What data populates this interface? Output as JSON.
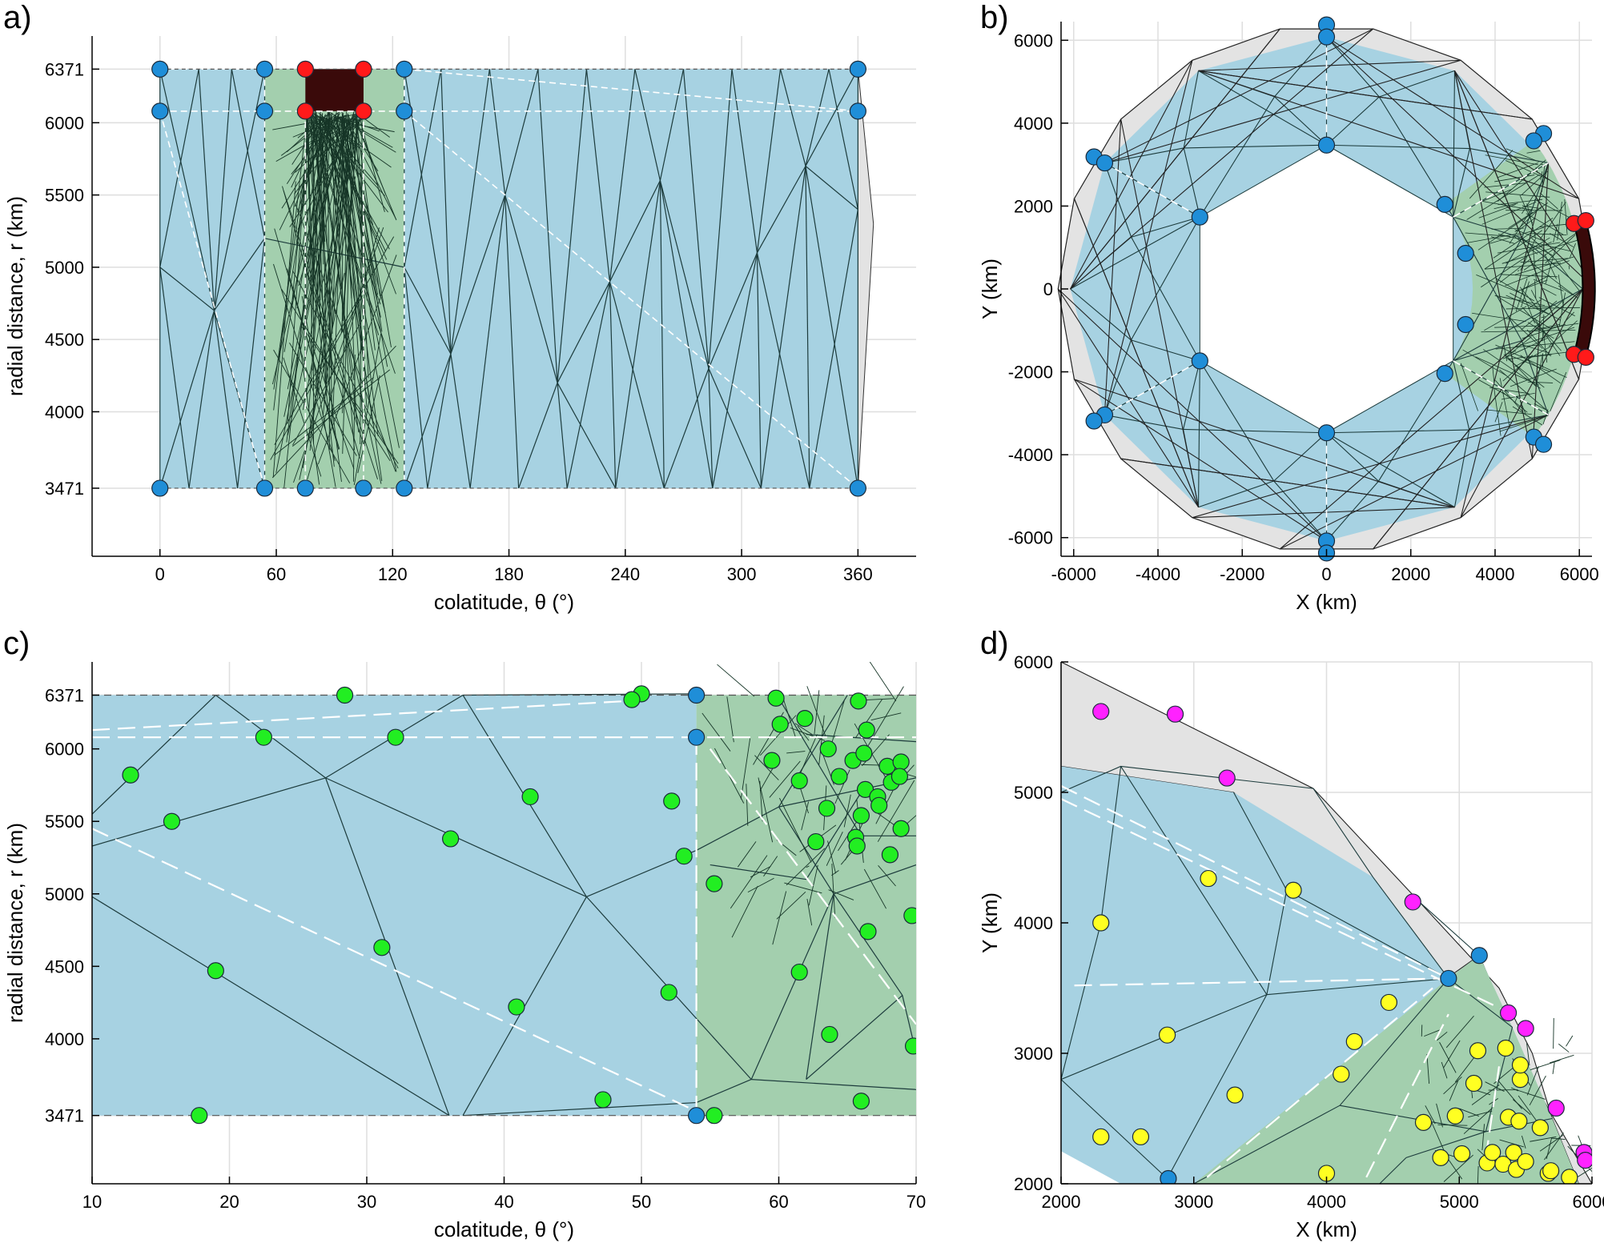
{
  "panels": [
    {
      "letter": "a)",
      "chart_data": {
        "type": "scatter",
        "title": "",
        "xlabel": "colatitude, θ (°)",
        "ylabel": "radial distance, r (km)",
        "xlim": [
          -35,
          390
        ],
        "ylim": [
          3000,
          6600
        ],
        "xticks": [
          "0",
          "60",
          "120",
          "180",
          "240",
          "300",
          "360"
        ],
        "yticks": [
          "3471",
          "4000",
          "4500",
          "5000",
          "5500",
          "6000",
          "6371"
        ],
        "grid": true,
        "regions": [
          {
            "name": "blue mantle",
            "color": "#a7d2e2",
            "xmin": 0,
            "xmax": 360,
            "ymin": 3471,
            "ymax": 6371
          },
          {
            "name": "green refined zone",
            "color": "#a3cfae",
            "xmin": 54,
            "xmax": 126,
            "ymin": 3471,
            "ymax": 6371
          },
          {
            "name": "dark refined block",
            "color": "#3a0a0a",
            "xmin": 75,
            "xmax": 105,
            "ymin": 6080,
            "ymax": 6371
          }
        ],
        "series": [
          {
            "color": "#1f8ed8",
            "points": [
              [
                0,
                6371
              ],
              [
                0,
                6080
              ],
              [
                54,
                6371
              ],
              [
                54,
                6080
              ],
              [
                126,
                6371
              ],
              [
                126,
                6080
              ],
              [
                360,
                6371
              ],
              [
                360,
                6080
              ],
              [
                0,
                3471
              ],
              [
                54,
                3471
              ],
              [
                75,
                3471
              ],
              [
                105,
                3471
              ],
              [
                126,
                3471
              ],
              [
                360,
                3471
              ]
            ]
          },
          {
            "color": "#ff1a1a",
            "points": [
              [
                75,
                6371
              ],
              [
                105,
                6371
              ],
              [
                75,
                6080
              ],
              [
                105,
                6080
              ]
            ]
          }
        ]
      }
    },
    {
      "letter": "b)",
      "chart_data": {
        "type": "scatter",
        "title": "",
        "xlabel": "X (km)",
        "ylabel": "Y (km)",
        "xlim": [
          -6300,
          6300
        ],
        "ylim": [
          -6450,
          6450
        ],
        "xticks": [
          "-6000",
          "-4000",
          "-2000",
          "0",
          "2000",
          "4000",
          "6000"
        ],
        "yticks": [
          "-6000",
          "-4000",
          "-2000",
          "0",
          "2000",
          "4000",
          "6000"
        ],
        "grid": true,
        "regions": [
          {
            "name": "grey outer shell",
            "color": "#e3e3e3"
          },
          {
            "name": "blue ring",
            "color": "#a7d2e2"
          },
          {
            "name": "green wedge",
            "color": "#a3cfae"
          },
          {
            "name": "dark refined block",
            "color": "#3a0a0a"
          }
        ],
        "series": [
          {
            "color": "#1f8ed8",
            "points": [
              [
                0,
                6371
              ],
              [
                0,
                6080
              ],
              [
                0,
                3471
              ],
              [
                0,
                -3471
              ],
              [
                0,
                -6080
              ],
              [
                0,
                -6371
              ],
              [
                -5518,
                3186
              ],
              [
                -5265,
                3040
              ],
              [
                -3006,
                1736
              ],
              [
                -3006,
                -1736
              ],
              [
                -5265,
                -3040
              ],
              [
                -5518,
                -3186
              ],
              [
                5151,
                3750
              ],
              [
                4919,
                3574
              ],
              [
                2808,
                2040
              ],
              [
                3301,
                860
              ],
              [
                3301,
                -860
              ],
              [
                2808,
                -2040
              ],
              [
                4919,
                -3574
              ],
              [
                5151,
                -3750
              ]
            ]
          },
          {
            "color": "#ff1a1a",
            "points": [
              [
                5873,
                1578
              ],
              [
                6154,
                1649
              ],
              [
                5873,
                -1578
              ],
              [
                6154,
                -1649
              ]
            ]
          }
        ]
      }
    },
    {
      "letter": "c)",
      "chart_data": {
        "type": "scatter",
        "title": "",
        "xlabel": "colatitude, θ (°)",
        "ylabel": "radial distance, r (km)",
        "xlim": [
          10,
          70
        ],
        "ylim": [
          3000,
          6600
        ],
        "xticks": [
          "10",
          "20",
          "30",
          "40",
          "50",
          "60",
          "70"
        ],
        "yticks": [
          "3471",
          "4000",
          "4500",
          "5000",
          "5500",
          "6000",
          "6371"
        ],
        "grid": true,
        "regions": [
          {
            "name": "blue mantle",
            "color": "#a7d2e2",
            "xmin": 10,
            "xmax": 54,
            "ymin": 3471,
            "ymax": 6371
          },
          {
            "name": "green refined zone",
            "color": "#a3cfae",
            "xmin": 54,
            "xmax": 70,
            "ymin": 3471,
            "ymax": 6371
          }
        ],
        "series": [
          {
            "color": "#1f8ed8",
            "points": [
              [
                54,
                6371
              ],
              [
                54,
                6080
              ],
              [
                54,
                3471
              ]
            ]
          },
          {
            "color": "#22ee22",
            "points": [
              [
                28.4,
                6371
              ],
              [
                50,
                6380
              ],
              [
                49.3,
                6340
              ],
              [
                22.5,
                6080
              ],
              [
                32.1,
                6080
              ],
              [
                12.8,
                5820
              ],
              [
                15.8,
                5500
              ],
              [
                41.9,
                5670
              ],
              [
                36.1,
                5380
              ],
              [
                52.2,
                5640
              ],
              [
                53.1,
                5260
              ],
              [
                55.3,
                5070
              ],
              [
                31.1,
                4630
              ],
              [
                19,
                4470
              ],
              [
                40.9,
                4220
              ],
              [
                52,
                4320
              ],
              [
                47.2,
                3580
              ],
              [
                17.8,
                3471
              ],
              [
                55.3,
                3471
              ],
              [
                59.8,
                6350
              ],
              [
                60.1,
                6170
              ],
              [
                61.9,
                6210
              ],
              [
                65.8,
                6330
              ],
              [
                66.4,
                6130
              ],
              [
                59.5,
                5920
              ],
              [
                63.6,
                6000
              ],
              [
                65.4,
                5920
              ],
              [
                66.2,
                5970
              ],
              [
                67.9,
                5880
              ],
              [
                68.9,
                5910
              ],
              [
                61.5,
                5780
              ],
              [
                64.4,
                5810
              ],
              [
                66.3,
                5720
              ],
              [
                67.2,
                5670
              ],
              [
                68.2,
                5770
              ],
              [
                68.8,
                5810
              ],
              [
                66,
                5540
              ],
              [
                67.3,
                5610
              ],
              [
                63.5,
                5590
              ],
              [
                65.6,
                5390
              ],
              [
                65.7,
                5330
              ],
              [
                62.7,
                5360
              ],
              [
                68.9,
                5450
              ],
              [
                68.1,
                5270
              ],
              [
                69.7,
                4850
              ],
              [
                66.5,
                4740
              ],
              [
                61.5,
                4460
              ],
              [
                63.7,
                4030
              ],
              [
                69.8,
                3950
              ],
              [
                66,
                3570
              ]
            ]
          }
        ]
      }
    },
    {
      "letter": "d)",
      "chart_data": {
        "type": "scatter",
        "title": "",
        "xlabel": "X (km)",
        "ylabel": "Y (km)",
        "xlim": [
          2000,
          6000
        ],
        "ylim": [
          2000,
          6000
        ],
        "xticks": [
          "2000",
          "3000",
          "4000",
          "5000",
          "6000"
        ],
        "yticks": [
          "2000",
          "3000",
          "4000",
          "5000",
          "6000"
        ],
        "grid": true,
        "regions": [
          {
            "name": "grey outer shell",
            "color": "#e3e3e3"
          },
          {
            "name": "blue ring",
            "color": "#a7d2e2"
          },
          {
            "name": "green wedge",
            "color": "#a3cfae"
          }
        ],
        "series": [
          {
            "color": "#1f8ed8",
            "points": [
              [
                5151,
                3750
              ],
              [
                4919,
                3574
              ],
              [
                2808,
                2040
              ]
            ]
          },
          {
            "color": "#ff22ff",
            "points": [
              [
                2300,
                5620
              ],
              [
                2860,
                5600
              ],
              [
                3250,
                5110
              ],
              [
                4650,
                4160
              ],
              [
                5370,
                3310
              ],
              [
                5500,
                3190
              ],
              [
                5730,
                2580
              ],
              [
                5940,
                2240
              ],
              [
                5950,
                2180
              ]
            ]
          },
          {
            "color": "#ffff22",
            "points": [
              [
                2300,
                4000
              ],
              [
                3110,
                4340
              ],
              [
                3750,
                4250
              ],
              [
                2300,
                2360
              ],
              [
                2600,
                2360
              ],
              [
                2800,
                3140
              ],
              [
                3310,
                2680
              ],
              [
                4210,
                3090
              ],
              [
                4110,
                2840
              ],
              [
                4470,
                3390
              ],
              [
                4730,
                2470
              ],
              [
                4860,
                2200
              ],
              [
                5020,
                2230
              ],
              [
                4970,
                2520
              ],
              [
                5110,
                2770
              ],
              [
                5140,
                3020
              ],
              [
                5210,
                2160
              ],
              [
                5250,
                2240
              ],
              [
                5330,
                2150
              ],
              [
                5350,
                3040
              ],
              [
                5370,
                2510
              ],
              [
                5410,
                2240
              ],
              [
                5430,
                2110
              ],
              [
                5450,
                2480
              ],
              [
                5460,
                2800
              ],
              [
                5460,
                2910
              ],
              [
                5500,
                2170
              ],
              [
                5610,
                2430
              ],
              [
                5670,
                2080
              ],
              [
                5690,
                2100
              ],
              [
                5830,
                2050
              ],
              [
                4000,
                2080
              ]
            ]
          }
        ]
      }
    }
  ]
}
